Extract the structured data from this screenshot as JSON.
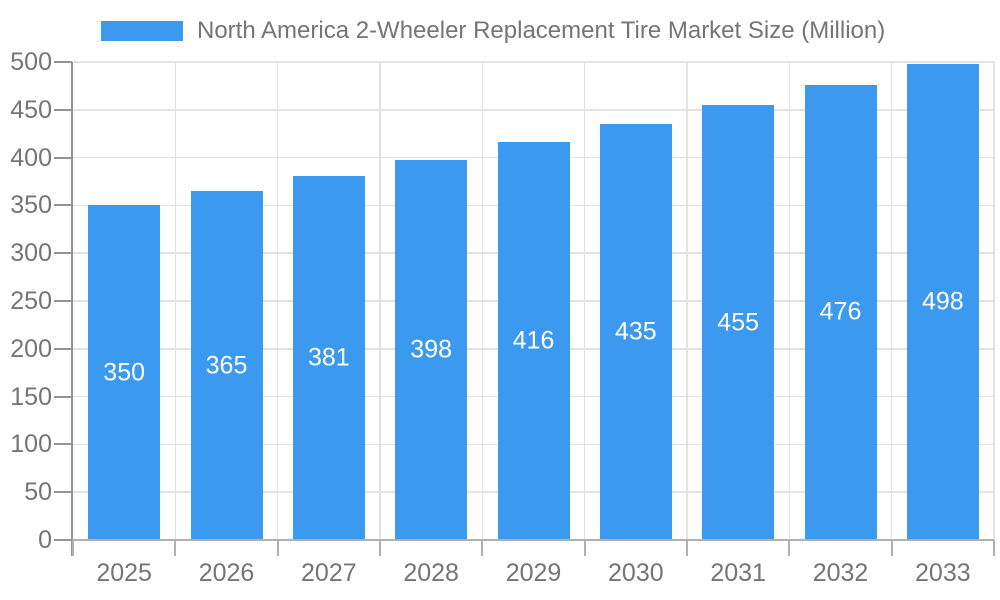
{
  "legend": {
    "label": "North America 2-Wheeler Replacement Tire Market Size (Million)"
  },
  "colors": {
    "bar": "#3B99F0",
    "grid": "#e2e2e2",
    "axis": "#949494",
    "x_axis": "#b0b0b0",
    "text": "#757575",
    "bar_label": "#ffffff",
    "background": "#ffffff"
  },
  "chart_data": {
    "type": "bar",
    "title": "North America 2-Wheeler Replacement Tire Market Size (Million)",
    "categories": [
      "2025",
      "2026",
      "2027",
      "2028",
      "2029",
      "2030",
      "2031",
      "2032",
      "2033"
    ],
    "values": [
      350,
      365,
      381,
      398,
      416,
      435,
      455,
      476,
      498
    ],
    "xlabel": "",
    "ylabel": "",
    "ylim": [
      0,
      500
    ],
    "y_tick_step": 50,
    "y_ticks": [
      "0",
      "50",
      "100",
      "150",
      "200",
      "250",
      "300",
      "350",
      "400",
      "450",
      "500"
    ],
    "grid": true,
    "legend_position": "top",
    "bar_labels": "inside-centered"
  }
}
